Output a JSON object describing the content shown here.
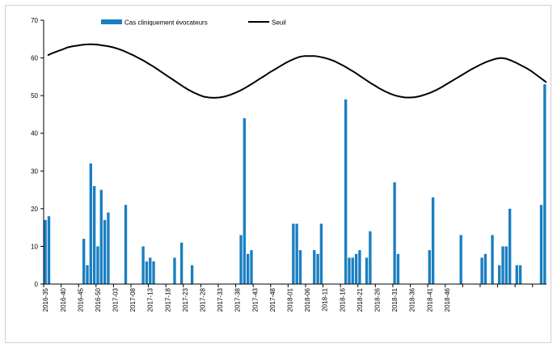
{
  "chart_data": {
    "type": "bar",
    "title": "",
    "xlabel": "",
    "ylabel": "",
    "ylim": [
      0,
      70
    ],
    "yticks": [
      0,
      10,
      20,
      30,
      40,
      50,
      60,
      70
    ],
    "grid": false,
    "legend_position": "top",
    "colors": {
      "bars": "#1a7fc1",
      "threshold": "#000000"
    },
    "x_labels": [
      "2016-35",
      "2016-40",
      "2016-45",
      "2016-50",
      "2017-03",
      "2017-08",
      "2017-13",
      "2017-18",
      "2017-23",
      "2017-28",
      "2017-33",
      "2017-38",
      "2017-43",
      "2017-48",
      "2018-01",
      "2018-06",
      "2018-11",
      "2018-16",
      "2018-21",
      "2018-26",
      "2018-31",
      "2018-36",
      "2018-41",
      "2018-46"
    ],
    "series": [
      {
        "name": "Cas cliniquement évocateurs",
        "type": "bar",
        "values": [
          17,
          18,
          0,
          0,
          0,
          0,
          0,
          0,
          0,
          0,
          0,
          12,
          5,
          32,
          26,
          10,
          25,
          17,
          19,
          0,
          0,
          0,
          0,
          21,
          0,
          0,
          0,
          0,
          10,
          6,
          7,
          6,
          0,
          0,
          0,
          0,
          0,
          7,
          0,
          11,
          0,
          0,
          5,
          0,
          0,
          0,
          0,
          0,
          0,
          0,
          0,
          0,
          0,
          0,
          0,
          0,
          13,
          44,
          8,
          9,
          0,
          0,
          0,
          0,
          0,
          0,
          0,
          0,
          0,
          0,
          0,
          16,
          16,
          9,
          0,
          0,
          0,
          9,
          8,
          16,
          0,
          0,
          0,
          0,
          0,
          0,
          49,
          7,
          7,
          8,
          9,
          0,
          7,
          14,
          0,
          0,
          0,
          0,
          0,
          0,
          27,
          8,
          0,
          0,
          0,
          0,
          0,
          0,
          0,
          0,
          9,
          23,
          0,
          0,
          0,
          0,
          0,
          0,
          0,
          13,
          0,
          0,
          0,
          0,
          0,
          7,
          8,
          0,
          13,
          0,
          5,
          10,
          10,
          20,
          0,
          5,
          5,
          0,
          0,
          0,
          0,
          0,
          21,
          53
        ]
      },
      {
        "name": "Seuil",
        "type": "line",
        "values": [
          60.7,
          61.3,
          61.8,
          62.3,
          62.8,
          63.1,
          63.3,
          63.5,
          63.6,
          63.6,
          63.5,
          63.3,
          63.1,
          62.8,
          62.4,
          61.9,
          61.3,
          60.7,
          60.0,
          59.3,
          58.5,
          57.7,
          56.8,
          55.9,
          55.0,
          54.1,
          53.2,
          52.3,
          51.5,
          50.8,
          50.2,
          49.7,
          49.5,
          49.4,
          49.5,
          49.7,
          50.1,
          50.6,
          51.2,
          51.9,
          52.7,
          53.5,
          54.4,
          55.2,
          56.1,
          56.9,
          57.7,
          58.5,
          59.2,
          59.8,
          60.3,
          60.5,
          60.5,
          60.5,
          60.3,
          60.0,
          59.6,
          59.1,
          58.4,
          57.7,
          56.9,
          56.1,
          55.2,
          54.3,
          53.4,
          52.6,
          51.8,
          51.1,
          50.5,
          50.0,
          49.7,
          49.5,
          49.5,
          49.6,
          49.9,
          50.3,
          50.8,
          51.4,
          52.1,
          52.9,
          53.7,
          54.5,
          55.3,
          56.1,
          56.9,
          57.6,
          58.3,
          58.9,
          59.4,
          59.8,
          60.0,
          59.8,
          59.3,
          58.7,
          58.0,
          57.3,
          56.5,
          55.5,
          54.5,
          53.5
        ]
      }
    ]
  }
}
